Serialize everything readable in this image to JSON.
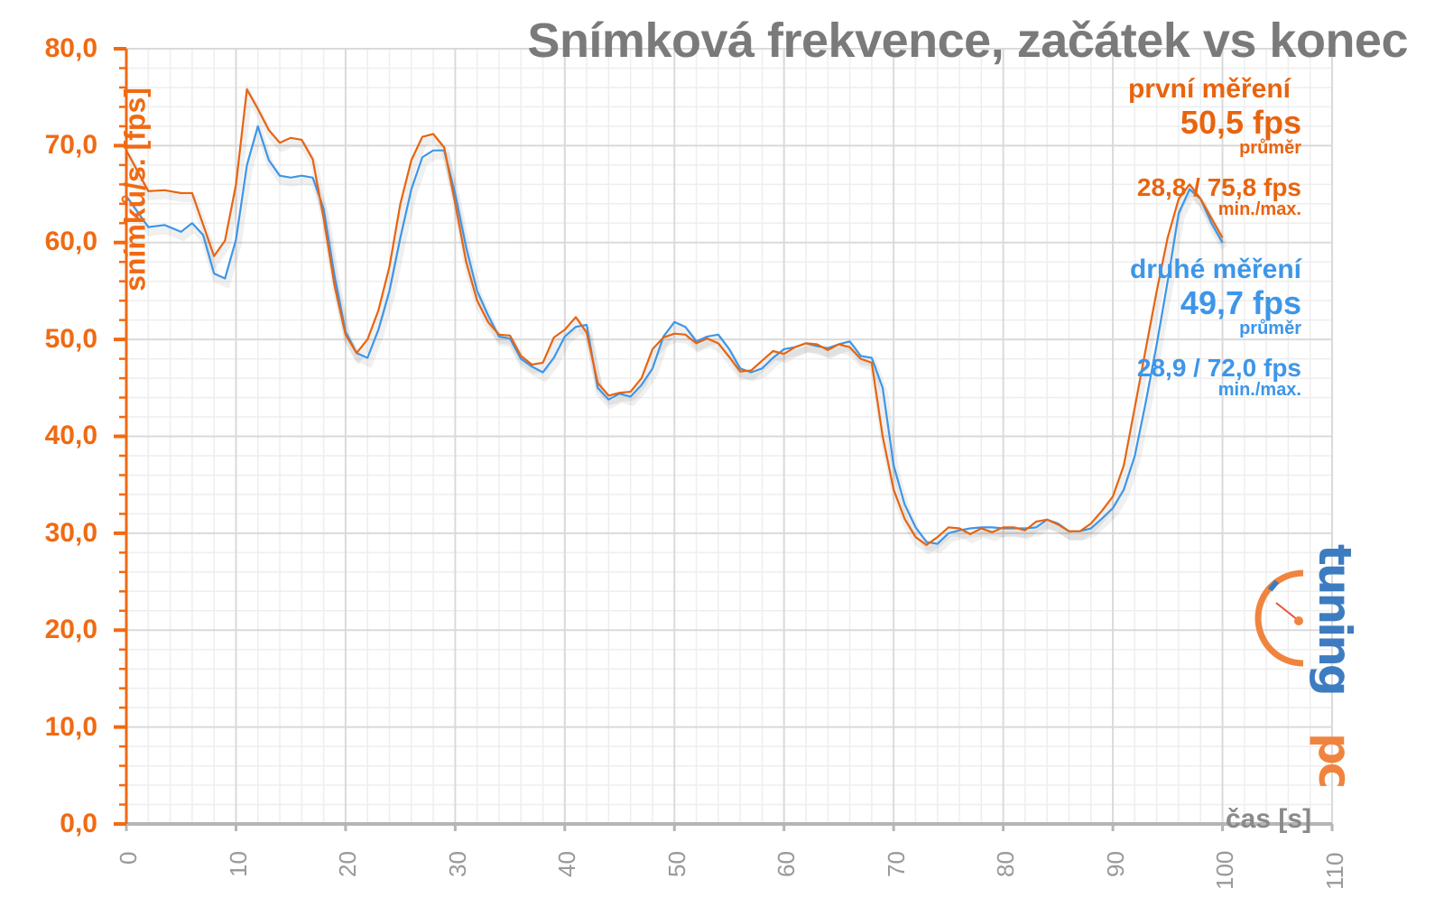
{
  "title": "Snímková frekvence, začátek vs konec",
  "legend": {
    "first": {
      "name": "první měření",
      "avg": "50,5 fps",
      "avg_label": "průměr",
      "minmax": "28,8 / 75,8 fps",
      "minmax_label": "min./max.",
      "color": "#e8640f"
    },
    "second": {
      "name": "druhé měření",
      "avg": "49,7 fps",
      "avg_label": "průměr",
      "minmax": "28,9 / 72,0 fps",
      "minmax_label": "min./max.",
      "color": "#3d96e8"
    }
  },
  "axes": {
    "y_title": "snímků/s. [fps]",
    "x_title": "čas [s]",
    "y_ticks": [
      "0,0",
      "10,0",
      "20,0",
      "30,0",
      "40,0",
      "50,0",
      "60,0",
      "70,0",
      "80,0"
    ],
    "x_ticks": [
      "0",
      "10",
      "20",
      "30",
      "40",
      "50",
      "60",
      "70",
      "80",
      "90",
      "100",
      "110"
    ]
  },
  "logo": "pctuning",
  "chart_data": {
    "type": "line",
    "title": "Snímková frekvence, začátek vs konec",
    "xlabel": "čas [s]",
    "ylabel": "snímků/s. [fps]",
    "xlim": [
      0,
      110
    ],
    "ylim": [
      0,
      80
    ],
    "grid": true,
    "legend_position": "top-right",
    "series": [
      {
        "name": "první měření",
        "color": "#e8640f",
        "avg": 50.5,
        "min": 28.8,
        "max": 75.8,
        "x": [
          0,
          2,
          3.5,
          5,
          6,
          8,
          9,
          10,
          11,
          12,
          13,
          14,
          15,
          16,
          17,
          18,
          19,
          20,
          21,
          22,
          23,
          24,
          25,
          26,
          27,
          28,
          29,
          30,
          31,
          32,
          33,
          34,
          35,
          36,
          37,
          38,
          39,
          40,
          41,
          42,
          43,
          44,
          45,
          46,
          47,
          48,
          49,
          50,
          51,
          52,
          53,
          54,
          55,
          56,
          57,
          58,
          59,
          60,
          61,
          62,
          63,
          64,
          65,
          66,
          67,
          68,
          69,
          70,
          71,
          72,
          73,
          74,
          75,
          76,
          77,
          78,
          79,
          80,
          81,
          82,
          83,
          84,
          85,
          86,
          87,
          88,
          89,
          90,
          91,
          92,
          93,
          94,
          95,
          96,
          97,
          98,
          99,
          100
        ],
        "y": [
          69.5,
          65.3,
          65.4,
          65.1,
          65.1,
          58.6,
          60.2,
          66.0,
          75.8,
          73.8,
          71.6,
          70.3,
          70.8,
          70.6,
          68.6,
          62.5,
          55.5,
          50.5,
          48.6,
          50.0,
          53.0,
          57.5,
          64.0,
          68.5,
          70.9,
          71.2,
          69.8,
          64.0,
          58.0,
          54.0,
          51.8,
          50.5,
          50.4,
          48.3,
          47.4,
          47.6,
          50.2,
          51.0,
          52.3,
          50.7,
          45.5,
          44.2,
          44.5,
          44.6,
          46.0,
          49.0,
          50.2,
          50.6,
          50.5,
          49.6,
          50.1,
          49.6,
          48.2,
          46.7,
          46.8,
          47.8,
          48.8,
          48.5,
          49.2,
          49.6,
          49.5,
          48.9,
          49.5,
          49.2,
          48.0,
          47.6,
          40.0,
          34.5,
          31.5,
          29.6,
          28.8,
          29.6,
          30.6,
          30.5,
          29.9,
          30.5,
          30.1,
          30.6,
          30.6,
          30.3,
          31.2,
          31.4,
          30.9,
          30.2,
          30.2,
          31.0,
          32.3,
          33.8,
          37.0,
          43.0,
          49.0,
          55.0,
          60.5,
          64.5,
          66.0,
          64.5,
          62.5,
          60.5
        ]
      },
      {
        "name": "druhé měření",
        "color": "#3d96e8",
        "avg": 49.7,
        "min": 28.9,
        "max": 72.0,
        "x": [
          0,
          2,
          3.5,
          5,
          6,
          7,
          8,
          9,
          10,
          11,
          12,
          13,
          14,
          15,
          16,
          17,
          18,
          19,
          20,
          21,
          22,
          23,
          24,
          25,
          26,
          27,
          28,
          29,
          30,
          31,
          32,
          33,
          34,
          35,
          36,
          37,
          38,
          39,
          40,
          41,
          42,
          43,
          44,
          45,
          46,
          47,
          48,
          49,
          50,
          51,
          52,
          53,
          54,
          55,
          56,
          57,
          58,
          59,
          60,
          61,
          62,
          63,
          64,
          65,
          66,
          67,
          68,
          69,
          70,
          71,
          72,
          73,
          74,
          75,
          76,
          77,
          78,
          79,
          80,
          81,
          82,
          83,
          84,
          85,
          86,
          87,
          88,
          89,
          90,
          91,
          92,
          93,
          94,
          95,
          96,
          97,
          98,
          99,
          100
        ],
        "y": [
          64.8,
          61.6,
          61.8,
          61.1,
          62.0,
          60.8,
          56.8,
          56.3,
          60.3,
          68.0,
          72.0,
          68.5,
          66.9,
          66.7,
          66.9,
          66.7,
          63.5,
          56.5,
          50.8,
          48.6,
          48.1,
          51.0,
          55.0,
          60.5,
          65.5,
          68.8,
          69.5,
          69.5,
          65.0,
          59.5,
          55.0,
          52.5,
          50.3,
          50.1,
          48.0,
          47.2,
          46.6,
          48.1,
          50.3,
          51.3,
          51.5,
          45.0,
          43.8,
          44.4,
          44.1,
          45.3,
          47.0,
          50.3,
          51.8,
          51.3,
          49.8,
          50.3,
          50.5,
          49.0,
          47.0,
          46.6,
          47.0,
          48.1,
          49.0,
          49.2,
          49.6,
          49.3,
          49.1,
          49.5,
          49.8,
          48.3,
          48.1,
          45.0,
          37.0,
          33.0,
          30.6,
          29.1,
          28.9,
          30.0,
          30.3,
          30.5,
          30.6,
          30.6,
          30.5,
          30.5,
          30.5,
          30.6,
          31.4,
          31.0,
          30.2,
          30.2,
          30.5,
          31.5,
          32.6,
          34.5,
          38.0,
          43.5,
          49.5,
          56.0,
          63.0,
          65.5,
          64.5,
          62.0,
          60.0
        ]
      }
    ]
  }
}
